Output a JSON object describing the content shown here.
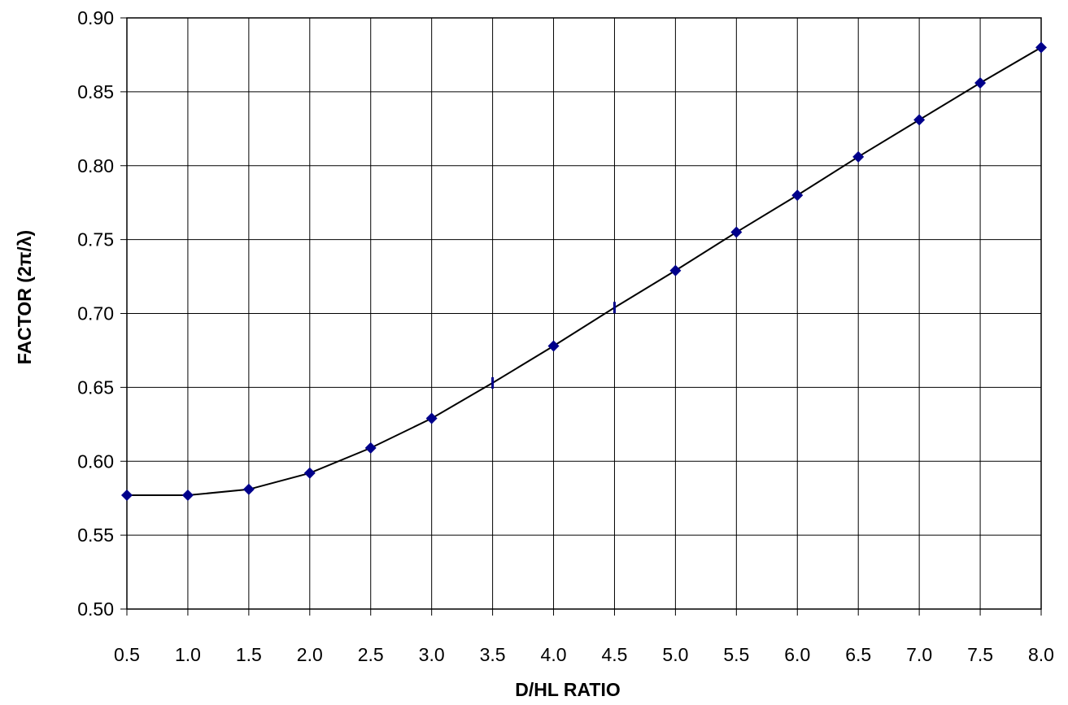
{
  "chart_data": {
    "type": "line",
    "title": "",
    "xlabel": "D/HL   RATIO",
    "ylabel": "FACTOR  (2π/λ)",
    "xlim": [
      0.5,
      8.0
    ],
    "ylim": [
      0.5,
      0.9
    ],
    "grid": true,
    "x_ticks": [
      "0.5",
      "1.0",
      "1.5",
      "2.0",
      "2.5",
      "3.0",
      "3.5",
      "4.0",
      "4.5",
      "5.0",
      "5.5",
      "6.0",
      "6.5",
      "7.0",
      "7.5",
      "8.0"
    ],
    "y_ticks": [
      "0.50",
      "0.55",
      "0.60",
      "0.65",
      "0.70",
      "0.75",
      "0.80",
      "0.85",
      "0.90"
    ],
    "line_color": "#000000",
    "marker_color": "#00008B",
    "series": [
      {
        "x": [
          0.5,
          1.0,
          1.5,
          2.0,
          2.5,
          3.0,
          3.5,
          4.0,
          4.5,
          5.0,
          5.5,
          6.0,
          6.5,
          7.0,
          7.5,
          8.0
        ],
        "y": [
          0.577,
          0.577,
          0.581,
          0.592,
          0.609,
          0.629,
          0.653,
          0.678,
          0.704,
          0.729,
          0.755,
          0.78,
          0.806,
          0.831,
          0.856,
          0.88
        ],
        "markers": [
          "diamond",
          "diamond",
          "diamond",
          "diamond",
          "diamond",
          "diamond",
          "bar",
          "diamond",
          "bar",
          "diamond",
          "diamond",
          "diamond",
          "diamond",
          "diamond",
          "diamond",
          "diamond"
        ]
      }
    ]
  }
}
